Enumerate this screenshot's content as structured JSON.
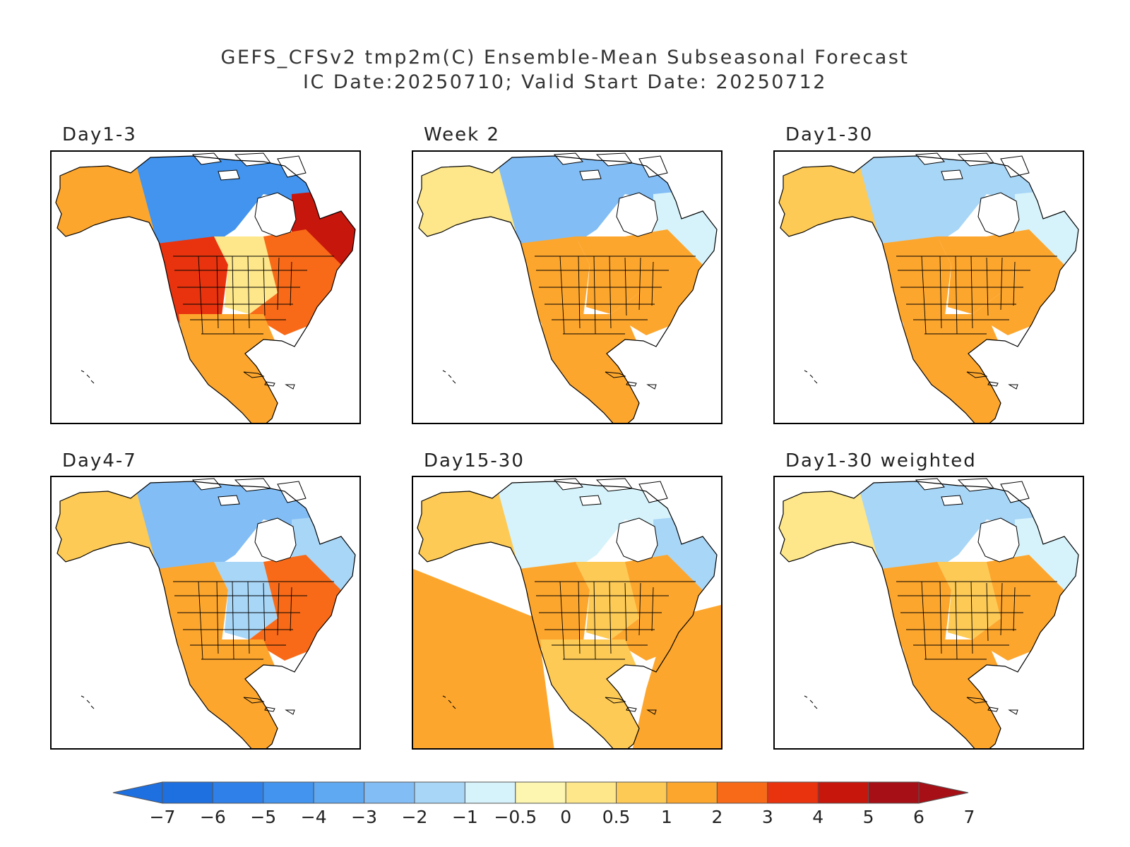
{
  "header": {
    "title_line1": "GEFS_CFSv2 tmp2m(C) Ensemble-Mean Subseasonal Forecast",
    "title_line2": "IC Date:20250710; Valid Start Date: 20250712"
  },
  "panels": [
    {
      "title": "Day1-3",
      "scheme": [
        [
          "ak",
          1.5
        ],
        [
          "nca",
          -4.5
        ],
        [
          "qc",
          4.5
        ],
        [
          "wus",
          3.5
        ],
        [
          "cus",
          0.3
        ],
        [
          "eus",
          2.5
        ],
        [
          "mx",
          1.5
        ],
        [
          "pac",
          null
        ],
        [
          "atl",
          null
        ]
      ]
    },
    {
      "title": "Week 2",
      "scheme": [
        [
          "ak",
          0.3
        ],
        [
          "nca",
          -3
        ],
        [
          "qc",
          -1
        ],
        [
          "wus",
          1.5
        ],
        [
          "cus",
          1
        ],
        [
          "eus",
          1.5
        ],
        [
          "mx",
          1.5
        ],
        [
          "pac",
          null
        ],
        [
          "atl",
          null
        ]
      ]
    },
    {
      "title": "Day1-30",
      "scheme": [
        [
          "ak",
          0.7
        ],
        [
          "nca",
          -1.5
        ],
        [
          "qc",
          -0.7
        ],
        [
          "wus",
          1.5
        ],
        [
          "cus",
          1
        ],
        [
          "eus",
          1.5
        ],
        [
          "mx",
          1.2
        ],
        [
          "pac",
          null
        ],
        [
          "atl",
          null
        ]
      ]
    },
    {
      "title": "Day4-7",
      "scheme": [
        [
          "ak",
          0.5
        ],
        [
          "nca",
          -3
        ],
        [
          "qc",
          -2
        ],
        [
          "wus",
          1.5
        ],
        [
          "cus",
          -2
        ],
        [
          "eus",
          2.5
        ],
        [
          "mx",
          1.5
        ],
        [
          "pac",
          null
        ],
        [
          "atl",
          null
        ]
      ]
    },
    {
      "title": "Day15-30",
      "scheme": [
        [
          "ak",
          0.7
        ],
        [
          "nca",
          -1
        ],
        [
          "qc",
          -1.5
        ],
        [
          "wus",
          1.5
        ],
        [
          "cus",
          0.7
        ],
        [
          "eus",
          1.5
        ],
        [
          "mx",
          0.5
        ],
        [
          "pac",
          1.5
        ],
        [
          "atl",
          1.2
        ]
      ]
    },
    {
      "title": "Day1-30 weighted",
      "scheme": [
        [
          "ak",
          0.3
        ],
        [
          "nca",
          -1.5
        ],
        [
          "qc",
          -0.7
        ],
        [
          "wus",
          1.2
        ],
        [
          "cus",
          0.8
        ],
        [
          "eus",
          1.5
        ],
        [
          "mx",
          1
        ],
        [
          "pac",
          null
        ],
        [
          "atl",
          null
        ]
      ]
    }
  ],
  "colorbar": {
    "labels": [
      "−7",
      "−6",
      "−5",
      "−4",
      "−3",
      "−2",
      "−1",
      "−0.5",
      "0",
      "0.5",
      "1",
      "2",
      "3",
      "4",
      "5",
      "6",
      "7"
    ],
    "below_color": "#1e6fe0",
    "above_color": "#a50f15",
    "colors": [
      "#1e6fe0",
      "#2f80e8",
      "#4294ee",
      "#5fa8f2",
      "#82bdf5",
      "#a8d6f7",
      "#d6f3fb",
      "#fdf6b0",
      "#fde78a",
      "#fdca55",
      "#fda62d",
      "#f86a18",
      "#e8330e",
      "#c7160c",
      "#a50f15"
    ]
  }
}
